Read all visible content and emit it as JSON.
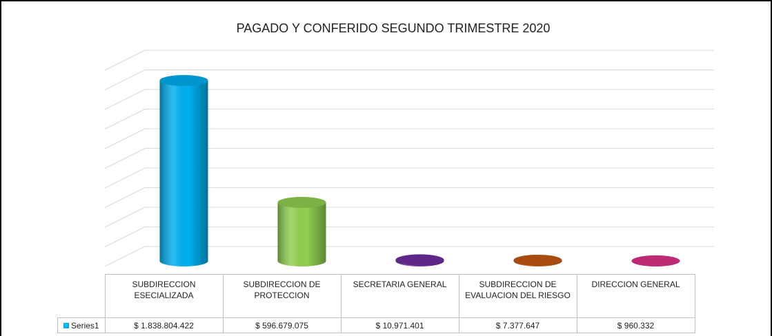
{
  "chart_data": {
    "type": "cylinder",
    "title": "PAGADO Y CONFERIDO SEGUNDO TRIMESTRE 2020",
    "categories": [
      "SUBDIRECCION ESECIALIZADA",
      "SUBDIRECCION DE PROTECCION",
      "SECRETARIA GENERAL",
      "SUBDIRECCION DE EVALUACION DEL RIESGO",
      "DIRECCION GENERAL"
    ],
    "series": [
      {
        "name": "Series1",
        "color": "#00b0f0",
        "colors": [
          "#00b0f0",
          "#92d050",
          "#7030a0",
          "#c55a11",
          "#e0338a"
        ],
        "values": [
          1838804422,
          596679075,
          10971401,
          7377647,
          960332
        ],
        "value_labels": [
          "$ 1.838.804.422",
          "$ 596.679.075",
          "$ 10.971.401",
          "$ 7.377.647",
          "$ 960.332"
        ]
      }
    ],
    "ylim": [
      0,
      2000000000
    ],
    "yticks": [
      0,
      200000000,
      400000000,
      600000000,
      800000000,
      1000000000,
      1200000000,
      1400000000,
      1600000000,
      1800000000,
      2000000000
    ],
    "grid": true
  }
}
